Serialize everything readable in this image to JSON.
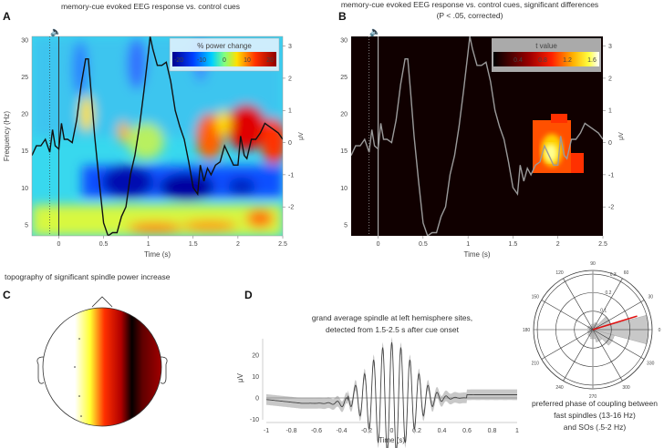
{
  "panels": {
    "A": {
      "letter": "A",
      "title": "memory-cue evoked EEG response vs. control cues",
      "colorbar_title": "% power change",
      "colorbar_ticks": [
        "-20",
        "-10",
        "0",
        "10",
        "20"
      ]
    },
    "B": {
      "letter": "B",
      "title_line1": "memory-cue evoked EEG response vs. control cues, significant differences",
      "title_line2": "(P < .05, corrected)",
      "colorbar_title": "t value",
      "colorbar_ticks": [
        "0.4",
        "0.8",
        "1.2",
        "1.6"
      ]
    },
    "C": {
      "letter": "C",
      "title": "topography of significant spindle power increase"
    },
    "D": {
      "letter": "D",
      "title_line1": "grand average spindle at left hemisphere sites,",
      "title_line2": "detected from 1.5-2.5 s after cue onset",
      "polar_caption_line1": "preferred phase of coupling between",
      "polar_caption_line2": "fast spindles (13-16 Hz)",
      "polar_caption_line3": "and SOs (.5-2 Hz)"
    }
  },
  "icons": {
    "cue_onset": "speaker-icon"
  },
  "colors": {
    "erp_A": "#111111",
    "erp_B": "#9a9a9a",
    "mean_vector": "#e01010",
    "shade": "#c8c8c8"
  },
  "chart_data": [
    {
      "type": "heatmap",
      "name": "time-frequency power change with ERP overlay",
      "xlabel": "Time (s)",
      "ylabel": "Frequency (Hz)",
      "y2label": "μV",
      "xlim": [
        -0.3,
        2.5
      ],
      "ylim": [
        3.5,
        30.5
      ],
      "y2lim": [
        -2.9,
        3.3
      ],
      "xticks": [
        "0",
        "0.5",
        "1",
        "1.5",
        "2",
        "2.5"
      ],
      "yticks": [
        "5",
        "10",
        "15",
        "20",
        "25",
        "30"
      ],
      "y2ticks": [
        "-2",
        "-1",
        "0",
        "1",
        "2",
        "3"
      ],
      "color_range": [
        -25,
        25
      ],
      "erp": {
        "t": [
          -0.3,
          -0.25,
          -0.2,
          -0.15,
          -0.1,
          -0.07,
          -0.04,
          0,
          0.03,
          0.06,
          0.1,
          0.15,
          0.2,
          0.25,
          0.3,
          0.33,
          0.36,
          0.4,
          0.45,
          0.5,
          0.55,
          0.6,
          0.65,
          0.7,
          0.75,
          0.8,
          0.85,
          0.9,
          0.95,
          1.0,
          1.02,
          1.05,
          1.1,
          1.15,
          1.2,
          1.25,
          1.3,
          1.35,
          1.4,
          1.45,
          1.5,
          1.55,
          1.58,
          1.62,
          1.66,
          1.7,
          1.75,
          1.8,
          1.85,
          1.9,
          1.95,
          2.0,
          2.03,
          2.07,
          2.1,
          2.15,
          2.2,
          2.25,
          2.3,
          2.35,
          2.4,
          2.45,
          2.5
        ],
        "uv": [
          -0.4,
          -0.1,
          -0.1,
          0.1,
          -0.3,
          0.4,
          -0.1,
          -0.2,
          0.6,
          0.1,
          0.1,
          0.0,
          0.7,
          1.8,
          2.6,
          2.6,
          1.6,
          0.2,
          -1.2,
          -2.5,
          -2.9,
          -2.8,
          -2.8,
          -2.3,
          -2.0,
          -1.0,
          -0.4,
          0.5,
          1.6,
          2.8,
          3.3,
          2.9,
          2.4,
          2.4,
          2.5,
          1.9,
          1.0,
          0.5,
          0.1,
          -0.6,
          -1.4,
          -1.6,
          -0.7,
          -1.2,
          -0.8,
          -1.0,
          -0.7,
          -0.6,
          -0.1,
          -0.4,
          -0.7,
          -0.7,
          0.2,
          -0.4,
          -0.5,
          0.1,
          0.1,
          0.3,
          0.6,
          0.5,
          0.4,
          0.3,
          0.1
        ]
      },
      "cue_marker_s": 0,
      "pre_marker_s": -0.1
    },
    {
      "type": "heatmap",
      "name": "significant t values",
      "xlabel": "Time (s)",
      "xlim": [
        -0.3,
        2.5
      ],
      "ylim": [
        3.5,
        30.5
      ],
      "color_range": [
        0,
        1.7
      ],
      "significant_cluster": {
        "t_range": [
          1.75,
          2.3
        ],
        "f_range": [
          12.5,
          21
        ],
        "peak_t": 1.95,
        "peak_f": 15.5,
        "peak_value": 1.6
      }
    },
    {
      "type": "line",
      "name": "grand average spindle",
      "xlabel": "Time (s)",
      "ylabel": "μV",
      "xlim": [
        -1,
        1
      ],
      "ylim": [
        -10,
        28
      ],
      "xticks": [
        "-1",
        "-0.8",
        "-0.6",
        "-0.4",
        "-0.2",
        "0",
        "0.2",
        "0.4",
        "0.6",
        "0.8",
        "1"
      ],
      "yticks": [
        "-10",
        "0",
        "10",
        "20"
      ],
      "spindle": {
        "frequency_hz": 13.8,
        "peak_amplitude_uv": 26,
        "envelope_sd_s": 0.17,
        "pre_offset_uv": -2.5,
        "post_offset_uv": 1.5
      }
    },
    {
      "type": "polar",
      "name": "phase coupling histogram",
      "angle_ticks": [
        "0",
        "30",
        "60",
        "90",
        "120",
        "150",
        "180",
        "210",
        "240",
        "270",
        "300",
        "330"
      ],
      "radial_ticks": [
        "0.1",
        "0.2",
        "0.3"
      ],
      "bins_deg": [
        0,
        30,
        60,
        90,
        120,
        150,
        180,
        210,
        240,
        270,
        300,
        330
      ],
      "bin_values": [
        0.3,
        0.1,
        0.04,
        0.03,
        0.02,
        0.03,
        0.02,
        0.03,
        0.04,
        0.05,
        0.07,
        0.12
      ],
      "mean_angle_deg": 17,
      "mean_vector_length": 0.25
    }
  ]
}
